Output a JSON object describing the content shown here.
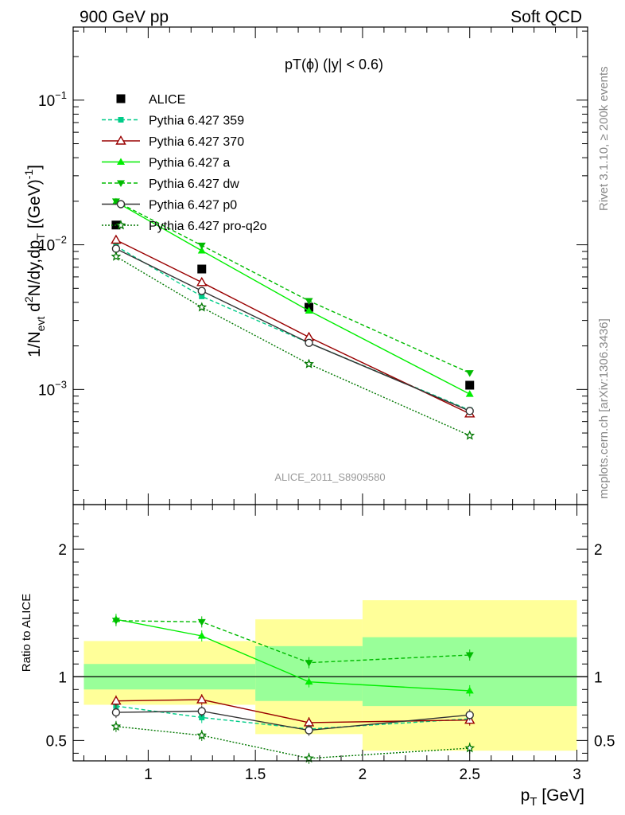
{
  "header": {
    "left": "900 GeV pp",
    "right": "Soft QCD",
    "title": "pT(ϕ) (|y| < 0.6)",
    "analysis_id": "ALICE_2011_S8909580",
    "side_text_top": "Rivet 3.1.10, ≥ 200k events",
    "side_text_bottom": "mcplots.cern.ch [arXiv:1306.3436]"
  },
  "colors": {
    "data": "#000000",
    "p359": "#00cc88",
    "p370": "#990000",
    "pa": "#00ee00",
    "pdw": "#00bb00",
    "pp0": "#333333",
    "pq2o": "#007700",
    "band_yellow": "#ffff99",
    "band_green": "#99ff99"
  },
  "chart_data": [
    {
      "type": "line",
      "panel": "main",
      "yscale": "log",
      "xlim": [
        0.65,
        3.05
      ],
      "ylim": [
        0.00016,
        0.32
      ],
      "ylabel_parts": [
        "1/N",
        "evt",
        " d",
        "2",
        "N/dy,dp",
        "T",
        " [(GeV)",
        "-1",
        "]"
      ],
      "yticks": [
        {
          "value": 0.1,
          "base": "10",
          "exp": "−1"
        },
        {
          "value": 0.01,
          "base": "10",
          "exp": "−2"
        },
        {
          "value": 0.001,
          "base": "10",
          "exp": "−3"
        }
      ],
      "x": [
        0.85,
        1.25,
        1.75,
        2.5
      ],
      "series": [
        {
          "name": "ALICE",
          "key": "data",
          "values": [
            0.0137,
            0.0068,
            0.0037,
            0.00107
          ],
          "marker": "square",
          "dash": "none",
          "points_only": true
        },
        {
          "name": "Pythia 6.427 359",
          "key": "p359",
          "values": [
            0.0098,
            0.0044,
            0.0021,
            0.00072
          ],
          "marker": "small-square",
          "dash": "5,3"
        },
        {
          "name": "Pythia 6.427 370",
          "key": "p370",
          "values": [
            0.0108,
            0.0055,
            0.0023,
            0.00068
          ],
          "marker": "open-triangle",
          "dash": "none"
        },
        {
          "name": "Pythia 6.427 a",
          "key": "pa",
          "values": [
            0.0198,
            0.0091,
            0.0035,
            0.00093
          ],
          "marker": "triangle-up",
          "dash": "none"
        },
        {
          "name": "Pythia 6.427 dw",
          "key": "pdw",
          "values": [
            0.02,
            0.0099,
            0.0041,
            0.0013
          ],
          "marker": "triangle-down",
          "dash": "5,3"
        },
        {
          "name": "Pythia 6.427 p0",
          "key": "pp0",
          "values": [
            0.0094,
            0.0048,
            0.0021,
            0.00071
          ],
          "marker": "open-circle",
          "dash": "none"
        },
        {
          "name": "Pythia 6.427 pro-q2o",
          "key": "pq2o",
          "values": [
            0.0083,
            0.0037,
            0.0015,
            0.00048
          ],
          "marker": "star",
          "dash": "2,2"
        }
      ]
    },
    {
      "type": "line",
      "panel": "ratio",
      "xlim": [
        0.65,
        3.05
      ],
      "ylim": [
        0.34,
        2.35
      ],
      "ylabel": "Ratio to ALICE",
      "xlabel_main": "p",
      "xlabel_sub": "T",
      "xlabel_unit": " [GeV]",
      "xticks": [
        {
          "value": 1,
          "label": "1"
        },
        {
          "value": 1.5,
          "label": "1.5"
        },
        {
          "value": 2,
          "label": "2"
        },
        {
          "value": 2.5,
          "label": "2.5"
        },
        {
          "value": 3,
          "label": "3"
        }
      ],
      "yticks": [
        {
          "value": 0.5,
          "label": "0.5"
        },
        {
          "value": 1,
          "label": "1"
        },
        {
          "value": 2,
          "label": "2"
        }
      ],
      "bands": [
        {
          "x0": 0.7,
          "x1": 1.5,
          "yellow": [
            0.78,
            1.28
          ],
          "green": [
            0.9,
            1.1
          ]
        },
        {
          "x0": 1.5,
          "x1": 2.0,
          "yellow": [
            0.55,
            1.45
          ],
          "green": [
            0.81,
            1.24
          ]
        },
        {
          "x0": 2.0,
          "x1": 3.0,
          "yellow": [
            0.42,
            1.6
          ],
          "green": [
            0.77,
            1.31
          ]
        }
      ],
      "x": [
        0.85,
        1.25,
        1.75,
        2.5
      ],
      "series": [
        {
          "key": "p359",
          "values": [
            0.77,
            0.68,
            0.59,
            0.67
          ],
          "marker": "small-square",
          "dash": "5,3"
        },
        {
          "key": "p370",
          "values": [
            0.81,
            0.82,
            0.64,
            0.66
          ],
          "marker": "open-triangle",
          "dash": "none"
        },
        {
          "key": "pa",
          "values": [
            1.45,
            1.32,
            0.96,
            0.89
          ],
          "marker": "triangle-up",
          "dash": "none"
        },
        {
          "key": "pdw",
          "values": [
            1.44,
            1.43,
            1.11,
            1.17
          ],
          "marker": "triangle-down",
          "dash": "5,3"
        },
        {
          "key": "pp0",
          "values": [
            0.72,
            0.73,
            0.58,
            0.7
          ],
          "marker": "open-circle",
          "dash": "none"
        },
        {
          "key": "pq2o",
          "values": [
            0.61,
            0.54,
            0.36,
            0.44
          ],
          "marker": "star",
          "dash": "2,2"
        }
      ]
    }
  ]
}
